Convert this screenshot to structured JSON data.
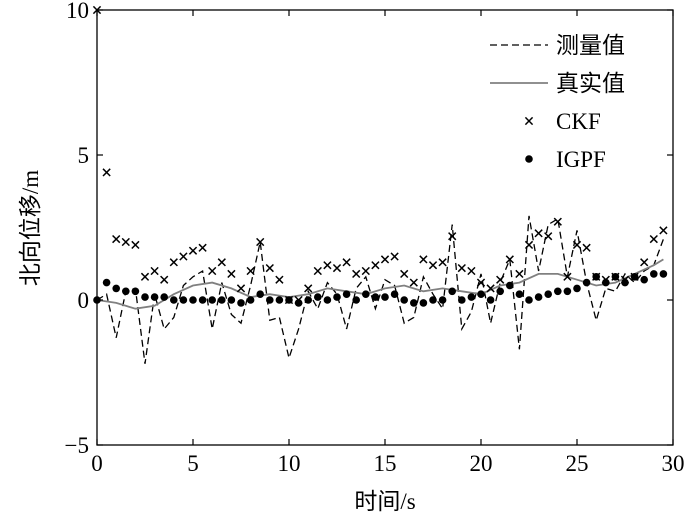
{
  "chart_data": {
    "type": "line",
    "title": "",
    "xlabel": "时间/s",
    "ylabel": "北向位移/m",
    "xlim": [
      0,
      30
    ],
    "ylim": [
      -5,
      10
    ],
    "xticks": [
      0,
      5,
      10,
      15,
      20,
      25,
      30
    ],
    "xtick_labels": [
      "0",
      "5",
      "10",
      "15",
      "20",
      "25",
      "30"
    ],
    "yticks": [
      -5,
      0,
      5,
      10
    ],
    "ytick_labels": [
      "−5",
      "0",
      "5",
      "10"
    ],
    "grid": false,
    "legend_position": "top-right",
    "legend": [
      "测量值",
      "真实值",
      "CKF",
      "IGPF"
    ],
    "series": [
      {
        "name": "测量值",
        "style": "dashed-line",
        "color": "#000000",
        "x": [
          0,
          0.5,
          1,
          1.5,
          2,
          2.5,
          3,
          3.5,
          4,
          4.5,
          5,
          5.5,
          6,
          6.5,
          7,
          7.5,
          8,
          8.5,
          9,
          9.5,
          10,
          10.5,
          11,
          11.5,
          12,
          12.5,
          13,
          13.5,
          14,
          14.5,
          15,
          15.5,
          16,
          16.5,
          17,
          17.5,
          18,
          18.5,
          19,
          19.5,
          20,
          20.5,
          21,
          21.5,
          22,
          22.5,
          23,
          23.5,
          24,
          24.5,
          25,
          25.5,
          26,
          26.5,
          27,
          27.5,
          28,
          28.5,
          29,
          29.5
        ],
        "y": [
          0,
          0.2,
          -1.3,
          0.3,
          0.4,
          -2.2,
          0.2,
          -1.0,
          -0.6,
          0.5,
          0.8,
          1.0,
          -1.0,
          0.6,
          -0.5,
          -0.8,
          0.5,
          2.0,
          -0.7,
          -0.6,
          -2.0,
          -1.0,
          0.3,
          -0.3,
          0.6,
          0.2,
          -1.0,
          0.4,
          0.8,
          -0.3,
          0.7,
          0.5,
          -0.8,
          -0.6,
          0.8,
          0.2,
          -0.3,
          2.6,
          -1.0,
          -0.4,
          0.9,
          -0.8,
          0.6,
          1.4,
          -1.7,
          2.9,
          1.0,
          2.6,
          2.8,
          0.8,
          2.4,
          0.6,
          -0.7,
          0.4,
          0.3,
          0.9,
          0.6,
          1.0,
          1.2,
          2.1
        ]
      },
      {
        "name": "真实值",
        "style": "solid-line",
        "color": "#808080",
        "x": [
          0,
          1,
          2,
          3,
          4,
          5,
          6,
          7,
          8,
          9,
          10,
          11,
          12,
          13,
          14,
          15,
          16,
          17,
          18,
          19,
          20,
          21,
          22,
          23,
          24,
          25,
          26,
          27,
          28,
          29,
          29.5
        ],
        "y": [
          0,
          -0.1,
          -0.3,
          -0.2,
          0.2,
          0.5,
          0.6,
          0.4,
          0.1,
          0.2,
          0.1,
          0.2,
          0.4,
          0.3,
          0.2,
          0.4,
          0.5,
          0.3,
          0.4,
          0.3,
          0.2,
          0.5,
          0.6,
          0.9,
          0.9,
          0.7,
          0.5,
          0.6,
          0.9,
          1.2,
          1.4
        ]
      },
      {
        "name": "CKF",
        "style": "x-marker",
        "color": "#000000",
        "x": [
          0,
          0.5,
          1,
          1.5,
          2,
          2.5,
          3,
          3.5,
          4,
          4.5,
          5,
          5.5,
          6,
          6.5,
          7,
          7.5,
          8,
          8.5,
          9,
          9.5,
          10,
          10.5,
          11,
          11.5,
          12,
          12.5,
          13,
          13.5,
          14,
          14.5,
          15,
          15.5,
          16,
          16.5,
          17,
          17.5,
          18,
          18.5,
          19,
          19.5,
          20,
          20.5,
          21,
          21.5,
          22,
          22.5,
          23,
          23.5,
          24,
          24.5,
          25,
          25.5,
          26,
          26.5,
          27,
          27.5,
          28,
          28.5,
          29,
          29.5
        ],
        "y": [
          10,
          4.4,
          2.1,
          2.0,
          1.9,
          0.8,
          1.0,
          0.7,
          1.3,
          1.5,
          1.7,
          1.8,
          1.0,
          1.3,
          0.9,
          0.4,
          1.0,
          2.0,
          1.1,
          0.7,
          0.0,
          0.0,
          0.4,
          1.0,
          1.2,
          1.1,
          1.3,
          0.9,
          1.0,
          1.2,
          1.4,
          1.5,
          0.9,
          0.6,
          1.4,
          1.2,
          1.3,
          2.2,
          1.1,
          1.0,
          0.6,
          0.4,
          0.7,
          1.4,
          0.9,
          1.9,
          2.3,
          2.2,
          2.7,
          0.8,
          1.9,
          1.8,
          0.8,
          0.7,
          0.8,
          0.7,
          0.8,
          1.3,
          2.1,
          2.4
        ]
      },
      {
        "name": "IGPF",
        "style": "dot-marker",
        "color": "#000000",
        "x": [
          0,
          0.5,
          1,
          1.5,
          2,
          2.5,
          3,
          3.5,
          4,
          4.5,
          5,
          5.5,
          6,
          6.5,
          7,
          7.5,
          8,
          8.5,
          9,
          9.5,
          10,
          10.5,
          11,
          11.5,
          12,
          12.5,
          13,
          13.5,
          14,
          14.5,
          15,
          15.5,
          16,
          16.5,
          17,
          17.5,
          18,
          18.5,
          19,
          19.5,
          20,
          20.5,
          21,
          21.5,
          22,
          22.5,
          23,
          23.5,
          24,
          24.5,
          25,
          25.5,
          26,
          26.5,
          27,
          27.5,
          28,
          28.5,
          29,
          29.5
        ],
        "y": [
          0.0,
          0.6,
          0.4,
          0.3,
          0.3,
          0.1,
          0.1,
          0.1,
          0.0,
          0.0,
          0.0,
          0.0,
          0.0,
          0.0,
          0.0,
          -0.1,
          0.0,
          0.2,
          0.0,
          0.0,
          0.0,
          -0.1,
          0.0,
          0.1,
          0.0,
          0.1,
          0.2,
          0.0,
          0.2,
          0.1,
          0.1,
          0.2,
          0.0,
          -0.1,
          -0.1,
          0.0,
          0.0,
          0.3,
          0.0,
          0.1,
          0.2,
          0.0,
          0.3,
          0.5,
          0.2,
          0.0,
          0.1,
          0.2,
          0.3,
          0.3,
          0.4,
          0.6,
          0.8,
          0.6,
          0.8,
          0.6,
          0.8,
          0.7,
          0.9,
          0.9
        ]
      }
    ]
  }
}
